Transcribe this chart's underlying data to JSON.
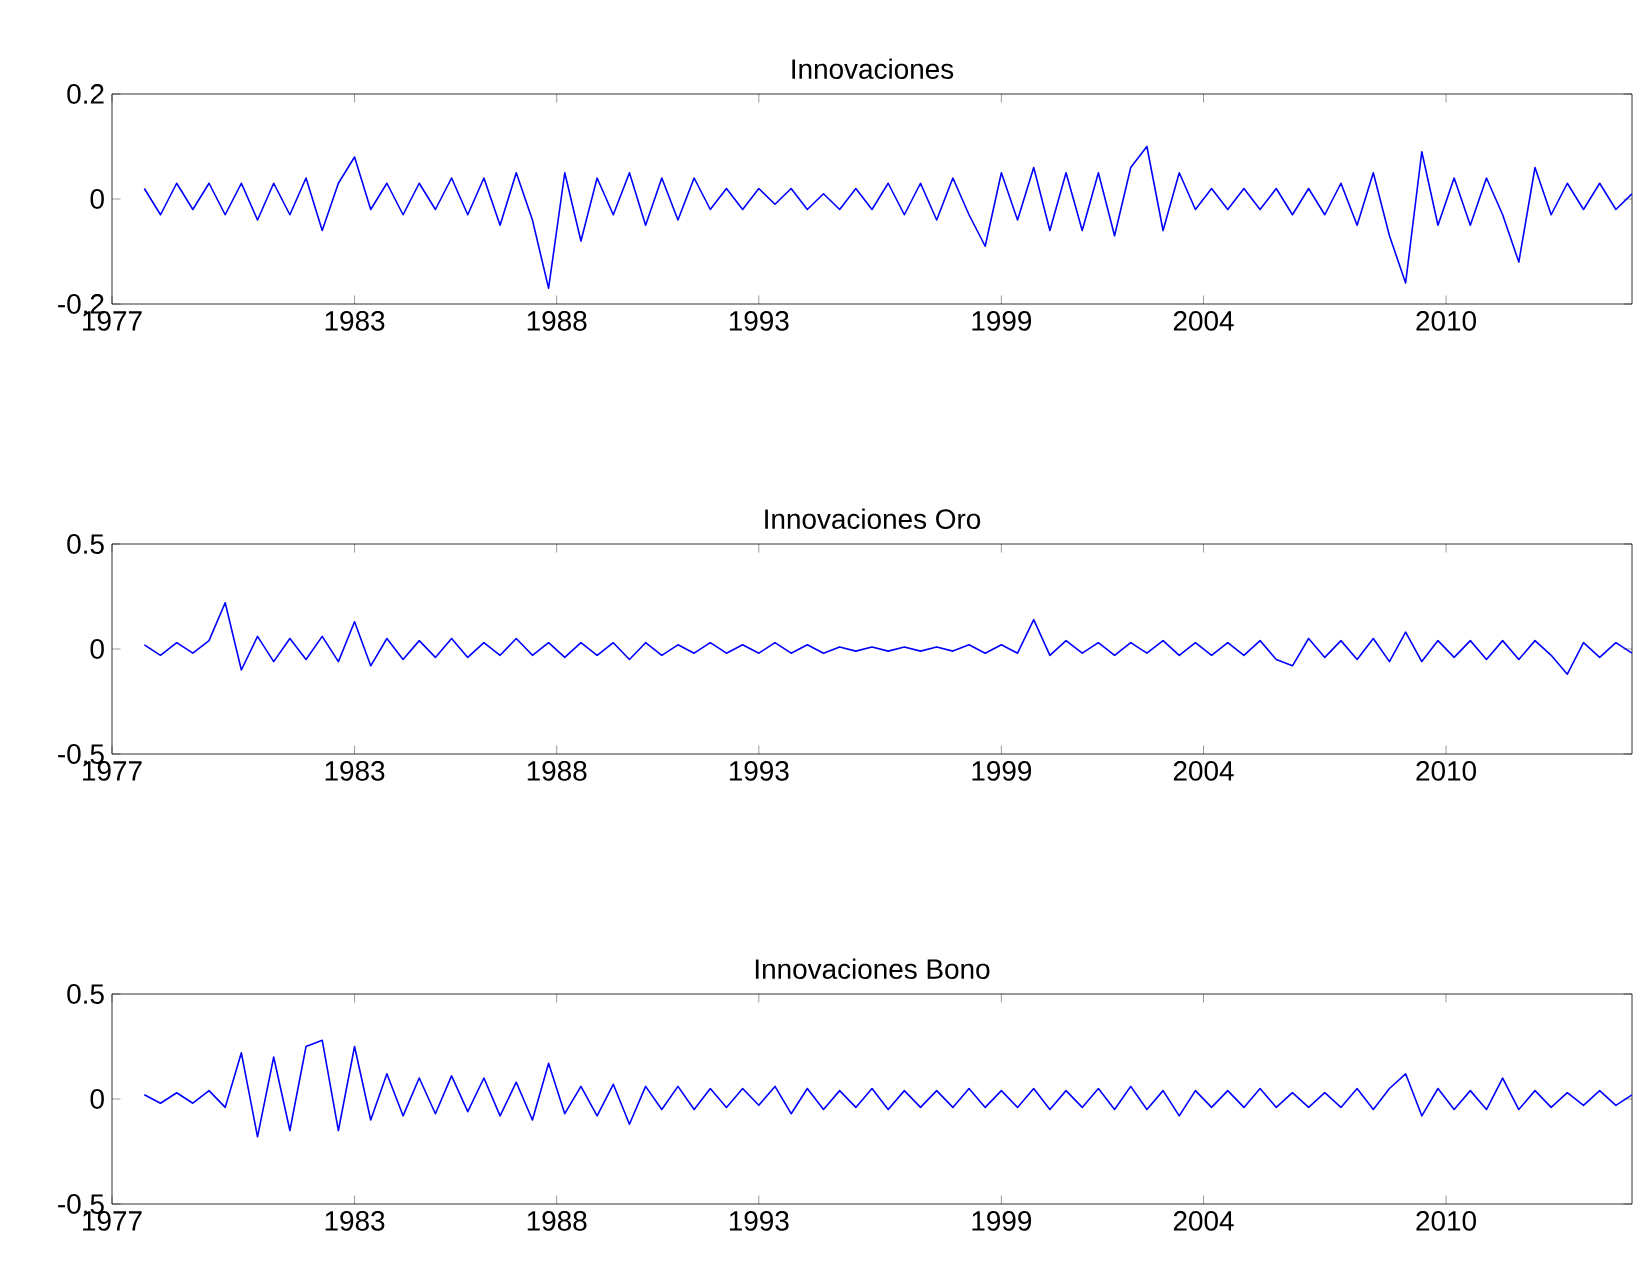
{
  "chart_data": [
    {
      "type": "line",
      "title": "Innovaciones",
      "color": "#0000ff",
      "x": [
        1977.8,
        1978.2,
        1978.6,
        1979.0,
        1979.4,
        1979.8,
        1980.2,
        1980.6,
        1981.0,
        1981.4,
        1981.8,
        1982.2,
        1982.6,
        1983.0,
        1983.4,
        1983.8,
        1984.2,
        1984.6,
        1985.0,
        1985.4,
        1985.8,
        1986.2,
        1986.6,
        1987.0,
        1987.4,
        1987.8,
        1988.2,
        1988.6,
        1989.0,
        1989.4,
        1989.8,
        1990.2,
        1990.6,
        1991.0,
        1991.4,
        1991.8,
        1992.2,
        1992.6,
        1993.0,
        1993.4,
        1993.8,
        1994.2,
        1994.6,
        1995.0,
        1995.4,
        1995.8,
        1996.2,
        1996.6,
        1997.0,
        1997.4,
        1997.8,
        1998.2,
        1998.6,
        1999.0,
        1999.4,
        1999.8,
        2000.2,
        2000.6,
        2001.0,
        2001.4,
        2001.8,
        2002.2,
        2002.6,
        2003.0,
        2003.4,
        2003.8,
        2004.2,
        2004.6,
        2005.0,
        2005.4,
        2005.8,
        2006.2,
        2006.6,
        2007.0,
        2007.4,
        2007.8,
        2008.2,
        2008.6,
        2009.0,
        2009.4,
        2009.8,
        2010.2,
        2010.6,
        2011.0,
        2011.4,
        2011.8,
        2012.2,
        2012.6,
        2013.0,
        2013.4,
        2013.8,
        2014.2,
        2014.6
      ],
      "values": [
        0.02,
        -0.03,
        0.03,
        -0.02,
        0.03,
        -0.03,
        0.03,
        -0.04,
        0.03,
        -0.03,
        0.04,
        -0.06,
        0.03,
        0.08,
        -0.02,
        0.03,
        -0.03,
        0.03,
        -0.02,
        0.04,
        -0.03,
        0.04,
        -0.05,
        0.05,
        -0.04,
        -0.17,
        0.05,
        -0.08,
        0.04,
        -0.03,
        0.05,
        -0.05,
        0.04,
        -0.04,
        0.04,
        -0.02,
        0.02,
        -0.02,
        0.02,
        -0.01,
        0.02,
        -0.02,
        0.01,
        -0.02,
        0.02,
        -0.02,
        0.03,
        -0.03,
        0.03,
        -0.04,
        0.04,
        -0.03,
        -0.09,
        0.05,
        -0.04,
        0.06,
        -0.06,
        0.05,
        -0.06,
        0.05,
        -0.07,
        0.06,
        0.1,
        -0.06,
        0.05,
        -0.02,
        0.02,
        -0.02,
        0.02,
        -0.02,
        0.02,
        -0.03,
        0.02,
        -0.03,
        0.03,
        -0.05,
        0.05,
        -0.07,
        -0.16,
        0.09,
        -0.05,
        0.04,
        -0.05,
        0.04,
        -0.03,
        -0.12,
        0.06,
        -0.03,
        0.03,
        -0.02,
        0.03,
        -0.02,
        0.01
      ],
      "xlim": [
        1977,
        2014.6
      ],
      "ylim": [
        -0.2,
        0.2
      ],
      "xticks": [
        1977,
        1983,
        1988,
        1993,
        1999,
        2004,
        2010
      ],
      "yticks": [
        -0.2,
        0,
        0.2
      ]
    },
    {
      "type": "line",
      "title": "Innovaciones Oro",
      "color": "#0000ff",
      "x": [
        1977.8,
        1978.2,
        1978.6,
        1979.0,
        1979.4,
        1979.8,
        1980.2,
        1980.6,
        1981.0,
        1981.4,
        1981.8,
        1982.2,
        1982.6,
        1983.0,
        1983.4,
        1983.8,
        1984.2,
        1984.6,
        1985.0,
        1985.4,
        1985.8,
        1986.2,
        1986.6,
        1987.0,
        1987.4,
        1987.8,
        1988.2,
        1988.6,
        1989.0,
        1989.4,
        1989.8,
        1990.2,
        1990.6,
        1991.0,
        1991.4,
        1991.8,
        1992.2,
        1992.6,
        1993.0,
        1993.4,
        1993.8,
        1994.2,
        1994.6,
        1995.0,
        1995.4,
        1995.8,
        1996.2,
        1996.6,
        1997.0,
        1997.4,
        1997.8,
        1998.2,
        1998.6,
        1999.0,
        1999.4,
        1999.8,
        2000.2,
        2000.6,
        2001.0,
        2001.4,
        2001.8,
        2002.2,
        2002.6,
        2003.0,
        2003.4,
        2003.8,
        2004.2,
        2004.6,
        2005.0,
        2005.4,
        2005.8,
        2006.2,
        2006.6,
        2007.0,
        2007.4,
        2007.8,
        2008.2,
        2008.6,
        2009.0,
        2009.4,
        2009.8,
        2010.2,
        2010.6,
        2011.0,
        2011.4,
        2011.8,
        2012.2,
        2012.6,
        2013.0,
        2013.4,
        2013.8,
        2014.2,
        2014.6
      ],
      "values": [
        0.02,
        -0.03,
        0.03,
        -0.02,
        0.04,
        0.22,
        -0.1,
        0.06,
        -0.06,
        0.05,
        -0.05,
        0.06,
        -0.06,
        0.13,
        -0.08,
        0.05,
        -0.05,
        0.04,
        -0.04,
        0.05,
        -0.04,
        0.03,
        -0.03,
        0.05,
        -0.03,
        0.03,
        -0.04,
        0.03,
        -0.03,
        0.03,
        -0.05,
        0.03,
        -0.03,
        0.02,
        -0.02,
        0.03,
        -0.02,
        0.02,
        -0.02,
        0.03,
        -0.02,
        0.02,
        -0.02,
        0.01,
        -0.01,
        0.01,
        -0.01,
        0.01,
        -0.01,
        0.01,
        -0.01,
        0.02,
        -0.02,
        0.02,
        -0.02,
        0.14,
        -0.03,
        0.04,
        -0.02,
        0.03,
        -0.03,
        0.03,
        -0.02,
        0.04,
        -0.03,
        0.03,
        -0.03,
        0.03,
        -0.03,
        0.04,
        -0.05,
        -0.08,
        0.05,
        -0.04,
        0.04,
        -0.05,
        0.05,
        -0.06,
        0.08,
        -0.06,
        0.04,
        -0.04,
        0.04,
        -0.05,
        0.04,
        -0.05,
        0.04,
        -0.03,
        -0.12,
        0.03,
        -0.04,
        0.03,
        -0.02
      ],
      "xlim": [
        1977,
        2014.6
      ],
      "ylim": [
        -0.5,
        0.5
      ],
      "xticks": [
        1977,
        1983,
        1988,
        1993,
        1999,
        2004,
        2010
      ],
      "yticks": [
        -0.5,
        0,
        0.5
      ]
    },
    {
      "type": "line",
      "title": "Innovaciones Bono",
      "color": "#0000ff",
      "x": [
        1977.8,
        1978.2,
        1978.6,
        1979.0,
        1979.4,
        1979.8,
        1980.2,
        1980.6,
        1981.0,
        1981.4,
        1981.8,
        1982.2,
        1982.6,
        1983.0,
        1983.4,
        1983.8,
        1984.2,
        1984.6,
        1985.0,
        1985.4,
        1985.8,
        1986.2,
        1986.6,
        1987.0,
        1987.4,
        1987.8,
        1988.2,
        1988.6,
        1989.0,
        1989.4,
        1989.8,
        1990.2,
        1990.6,
        1991.0,
        1991.4,
        1991.8,
        1992.2,
        1992.6,
        1993.0,
        1993.4,
        1993.8,
        1994.2,
        1994.6,
        1995.0,
        1995.4,
        1995.8,
        1996.2,
        1996.6,
        1997.0,
        1997.4,
        1997.8,
        1998.2,
        1998.6,
        1999.0,
        1999.4,
        1999.8,
        2000.2,
        2000.6,
        2001.0,
        2001.4,
        2001.8,
        2002.2,
        2002.6,
        2003.0,
        2003.4,
        2003.8,
        2004.2,
        2004.6,
        2005.0,
        2005.4,
        2005.8,
        2006.2,
        2006.6,
        2007.0,
        2007.4,
        2007.8,
        2008.2,
        2008.6,
        2009.0,
        2009.4,
        2009.8,
        2010.2,
        2010.6,
        2011.0,
        2011.4,
        2011.8,
        2012.2,
        2012.6,
        2013.0,
        2013.4,
        2013.8,
        2014.2,
        2014.6
      ],
      "values": [
        0.02,
        -0.02,
        0.03,
        -0.02,
        0.04,
        -0.04,
        0.22,
        -0.18,
        0.2,
        -0.15,
        0.25,
        0.28,
        -0.15,
        0.25,
        -0.1,
        0.12,
        -0.08,
        0.1,
        -0.07,
        0.11,
        -0.06,
        0.1,
        -0.08,
        0.08,
        -0.1,
        0.17,
        -0.07,
        0.06,
        -0.08,
        0.07,
        -0.12,
        0.06,
        -0.05,
        0.06,
        -0.05,
        0.05,
        -0.04,
        0.05,
        -0.03,
        0.06,
        -0.07,
        0.05,
        -0.05,
        0.04,
        -0.04,
        0.05,
        -0.05,
        0.04,
        -0.04,
        0.04,
        -0.04,
        0.05,
        -0.04,
        0.04,
        -0.04,
        0.05,
        -0.05,
        0.04,
        -0.04,
        0.05,
        -0.05,
        0.06,
        -0.05,
        0.04,
        -0.08,
        0.04,
        -0.04,
        0.04,
        -0.04,
        0.05,
        -0.04,
        0.03,
        -0.04,
        0.03,
        -0.04,
        0.05,
        -0.05,
        0.05,
        0.12,
        -0.08,
        0.05,
        -0.05,
        0.04,
        -0.05,
        0.1,
        -0.05,
        0.04,
        -0.04,
        0.03,
        -0.03,
        0.04,
        -0.03,
        0.02
      ],
      "xlim": [
        1977,
        2014.6
      ],
      "ylim": [
        -0.5,
        0.5
      ],
      "xticks": [
        1977,
        1983,
        1988,
        1993,
        1999,
        2004,
        2010
      ],
      "yticks": [
        -0.5,
        0,
        0.5
      ]
    }
  ]
}
